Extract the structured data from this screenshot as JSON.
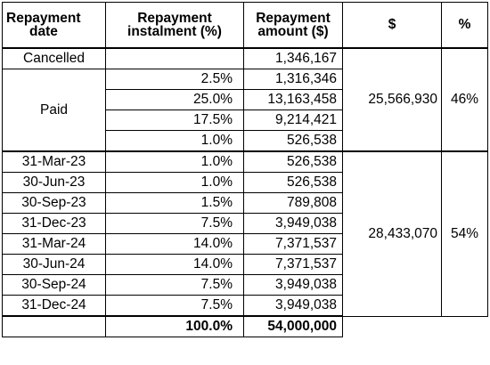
{
  "headers": {
    "date_line1": "Repayment",
    "date_line2": "date",
    "instalment_line1": "Repayment",
    "instalment_line2": "instalment (%)",
    "amount_line1": "Repayment",
    "amount_line2": "amount ($)",
    "dollar": "$",
    "percent": "%"
  },
  "cancelled": {
    "label": "Cancelled",
    "instalment": "",
    "amount": "1,346,167"
  },
  "paid": {
    "label": "Paid",
    "rows": [
      {
        "instalment": "2.5%",
        "amount": "1,316,346"
      },
      {
        "instalment": "25.0%",
        "amount": "13,163,458"
      },
      {
        "instalment": "17.5%",
        "amount": "9,214,421"
      },
      {
        "instalment": "1.0%",
        "amount": "526,538"
      }
    ],
    "subtotal_dollar": "25,566,930",
    "subtotal_percent": "46%"
  },
  "scheduled": {
    "rows": [
      {
        "date": "31-Mar-23",
        "instalment": "1.0%",
        "amount": "526,538"
      },
      {
        "date": "30-Jun-23",
        "instalment": "1.0%",
        "amount": "526,538"
      },
      {
        "date": "30-Sep-23",
        "instalment": "1.5%",
        "amount": "789,808"
      },
      {
        "date": "31-Dec-23",
        "instalment": "7.5%",
        "amount": "3,949,038"
      },
      {
        "date": "31-Mar-24",
        "instalment": "14.0%",
        "amount": "7,371,537"
      },
      {
        "date": "30-Jun-24",
        "instalment": "14.0%",
        "amount": "7,371,537"
      },
      {
        "date": "30-Sep-24",
        "instalment": "7.5%",
        "amount": "3,949,038"
      },
      {
        "date": "31-Dec-24",
        "instalment": "7.5%",
        "amount": "3,949,038"
      }
    ],
    "subtotal_dollar": "28,433,070",
    "subtotal_percent": "54%"
  },
  "total": {
    "instalment": "100.0%",
    "amount": "54,000,000"
  }
}
